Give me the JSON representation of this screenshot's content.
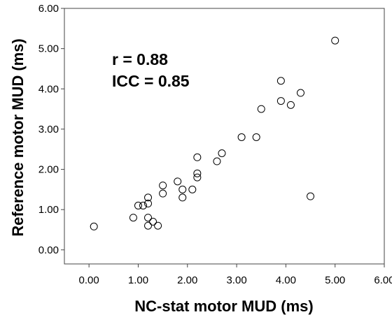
{
  "chart_data": {
    "type": "scatter",
    "xlabel": "NC-stat motor MUD (ms)",
    "ylabel": "Reference motor MUD (ms)",
    "xlim": [
      -0.5,
      6.0
    ],
    "ylim": [
      -0.35,
      6.0
    ],
    "x_ticks": [
      "0.00",
      "1.00",
      "2.00",
      "3.00",
      "4.00",
      "5.00",
      "6.00"
    ],
    "y_ticks": [
      "0.00",
      "1.00",
      "2.00",
      "3.00",
      "4.00",
      "5.00",
      "6.00"
    ],
    "annotations": [
      "r = 0.88",
      "ICC = 0.85"
    ],
    "grid": false,
    "marker": "open-circle",
    "points": [
      {
        "x": 0.1,
        "y": 0.58
      },
      {
        "x": 0.9,
        "y": 0.8
      },
      {
        "x": 1.0,
        "y": 1.1
      },
      {
        "x": 1.1,
        "y": 1.1
      },
      {
        "x": 1.2,
        "y": 1.3
      },
      {
        "x": 1.2,
        "y": 1.15
      },
      {
        "x": 1.2,
        "y": 0.8
      },
      {
        "x": 1.2,
        "y": 0.6
      },
      {
        "x": 1.3,
        "y": 0.7
      },
      {
        "x": 1.4,
        "y": 0.6
      },
      {
        "x": 1.5,
        "y": 1.6
      },
      {
        "x": 1.5,
        "y": 1.4
      },
      {
        "x": 1.8,
        "y": 1.7
      },
      {
        "x": 1.9,
        "y": 1.5
      },
      {
        "x": 1.9,
        "y": 1.3
      },
      {
        "x": 2.1,
        "y": 1.5
      },
      {
        "x": 2.2,
        "y": 2.3
      },
      {
        "x": 2.2,
        "y": 1.9
      },
      {
        "x": 2.2,
        "y": 1.8
      },
      {
        "x": 2.6,
        "y": 2.2
      },
      {
        "x": 2.7,
        "y": 2.4
      },
      {
        "x": 3.1,
        "y": 2.8
      },
      {
        "x": 3.4,
        "y": 2.8
      },
      {
        "x": 3.5,
        "y": 3.5
      },
      {
        "x": 3.9,
        "y": 4.2
      },
      {
        "x": 3.9,
        "y": 3.7
      },
      {
        "x": 4.1,
        "y": 3.6
      },
      {
        "x": 4.3,
        "y": 3.9
      },
      {
        "x": 4.5,
        "y": 1.33
      },
      {
        "x": 5.0,
        "y": 5.2
      }
    ]
  }
}
